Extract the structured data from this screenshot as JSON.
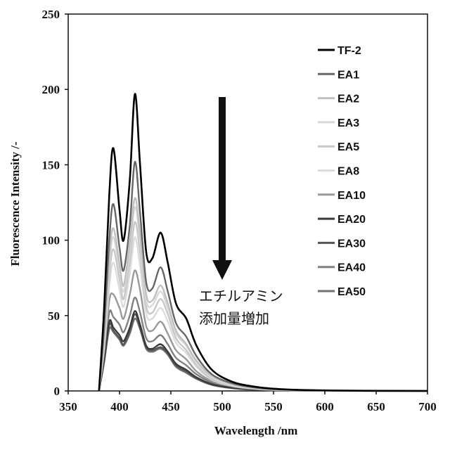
{
  "chart_data": {
    "type": "line",
    "title": "",
    "xlabel": "Wavelength /nm",
    "ylabel": "Fluorescence Intensity /-",
    "xlim": [
      350,
      700
    ],
    "ylim": [
      0,
      250
    ],
    "xticks": [
      "350",
      "400",
      "450",
      "500",
      "550",
      "600",
      "650",
      "700"
    ],
    "yticks": [
      "0",
      "50",
      "100",
      "150",
      "200",
      "250"
    ],
    "grid": false,
    "legend_position": "right",
    "annotation": {
      "line1": "エチルアミン",
      "line2": "添加量増加",
      "arrow_direction": "down"
    },
    "x": [
      380,
      385,
      390,
      394,
      400,
      404,
      410,
      415,
      420,
      426,
      432,
      440,
      447,
      455,
      465,
      475,
      490,
      510,
      530,
      550,
      580,
      620,
      700
    ],
    "series": [
      {
        "name": "TF-2",
        "color": "#000000",
        "values": [
          0,
          55,
          130,
          161,
          120,
          100,
          140,
          197,
          150,
          92,
          88,
          105,
          85,
          58,
          48,
          30,
          14,
          6,
          3,
          1.5,
          0.6,
          0.2,
          0
        ]
      },
      {
        "name": "EA1",
        "color": "#666666",
        "values": [
          0,
          42,
          100,
          124,
          95,
          80,
          110,
          152,
          118,
          72,
          68,
          82,
          66,
          45,
          36,
          23,
          11,
          5,
          2.4,
          1.2,
          0.5,
          0.2,
          0
        ]
      },
      {
        "name": "EA2",
        "color": "#c0c0c0",
        "values": [
          0,
          37,
          88,
          108,
          84,
          70,
          98,
          128,
          104,
          64,
          60,
          70,
          58,
          40,
          31,
          20,
          10,
          4.5,
          2.2,
          1.1,
          0.4,
          0.1,
          0
        ]
      },
      {
        "name": "EA3",
        "color": "#d8d8d8",
        "values": [
          0,
          35,
          83,
          102,
          80,
          66,
          93,
          122,
          99,
          60,
          57,
          66,
          55,
          38,
          30,
          19,
          9,
          4,
          2,
          1,
          0.4,
          0.1,
          0
        ]
      },
      {
        "name": "EA5",
        "color": "#c8c8c8",
        "values": [
          0,
          32,
          76,
          94,
          74,
          61,
          86,
          112,
          92,
          56,
          52,
          61,
          51,
          35,
          27,
          17,
          8,
          3.8,
          1.8,
          0.9,
          0.4,
          0.1,
          0
        ]
      },
      {
        "name": "EA8",
        "color": "#dcdcdc",
        "values": [
          0,
          29,
          69,
          85,
          67,
          56,
          78,
          102,
          83,
          51,
          48,
          55,
          46,
          32,
          25,
          16,
          7.5,
          3.4,
          1.6,
          0.8,
          0.3,
          0.1,
          0
        ]
      },
      {
        "name": "EA10",
        "color": "#999999",
        "values": [
          0,
          26,
          60,
          64,
          55,
          48,
          64,
          80,
          67,
          43,
          40,
          46,
          38,
          27,
          21,
          13,
          6.5,
          3,
          1.4,
          0.7,
          0.3,
          0.1,
          0
        ]
      },
      {
        "name": "EA20",
        "color": "#3a3a3a",
        "values": [
          0,
          21,
          46,
          42,
          37,
          33,
          42,
          53,
          44,
          30,
          28,
          31,
          26,
          18,
          14,
          9,
          4.5,
          2,
          1,
          0.5,
          0.2,
          0.1,
          0
        ]
      },
      {
        "name": "EA30",
        "color": "#555555",
        "values": [
          0,
          20,
          44,
          40,
          35,
          31,
          40,
          51,
          42,
          29,
          27,
          29,
          25,
          17,
          13,
          8.5,
          4.2,
          1.9,
          0.9,
          0.5,
          0.2,
          0.1,
          0
        ]
      },
      {
        "name": "EA40",
        "color": "#808080",
        "values": [
          0,
          23,
          52,
          49,
          44,
          39,
          50,
          62,
          52,
          35,
          33,
          37,
          31,
          22,
          17,
          11,
          5.5,
          2.5,
          1.2,
          0.6,
          0.2,
          0.1,
          0
        ]
      },
      {
        "name": "EA50",
        "color": "#707070",
        "values": [
          0,
          19,
          41,
          39,
          34,
          30,
          38,
          48,
          41,
          28,
          26,
          28,
          24,
          16,
          12,
          8,
          4,
          1.8,
          0.9,
          0.4,
          0.2,
          0.1,
          0
        ]
      }
    ]
  }
}
